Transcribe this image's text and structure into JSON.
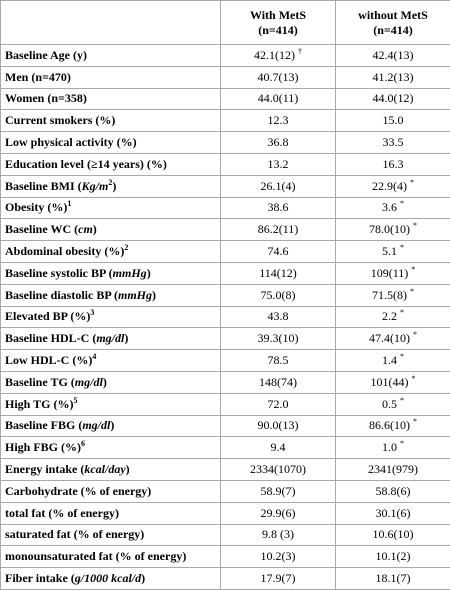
{
  "table": {
    "header": [
      {
        "lines": [
          "With MetS",
          "(n=414)"
        ]
      },
      {
        "lines": [
          "without MetS",
          "(n=414)"
        ]
      }
    ],
    "rows": [
      {
        "label": [
          {
            "t": "Baseline Age (y)"
          }
        ],
        "with": {
          "t": "42.1(12)",
          "sup": "†"
        },
        "without": {
          "t": "42.4(13)"
        }
      },
      {
        "label": [
          {
            "t": "Men (n=470)"
          }
        ],
        "with": {
          "t": "40.7(13)"
        },
        "without": {
          "t": "41.2(13)"
        }
      },
      {
        "label": [
          {
            "t": "Women (n=358)"
          }
        ],
        "with": {
          "t": "44.0(11)"
        },
        "without": {
          "t": "44.0(12)"
        }
      },
      {
        "label": [
          {
            "t": "Current smokers (%)"
          }
        ],
        "with": {
          "t": "12.3"
        },
        "without": {
          "t": "15.0"
        }
      },
      {
        "label": [
          {
            "t": "Low physical activity (%)"
          }
        ],
        "with": {
          "t": "36.8"
        },
        "without": {
          "t": "33.5"
        }
      },
      {
        "label": [
          {
            "t": "Education level (≥14 years) (%)"
          }
        ],
        "with": {
          "t": "13.2"
        },
        "without": {
          "t": "16.3"
        }
      },
      {
        "label": [
          {
            "t": "Baseline BMI ("
          },
          {
            "t": "Kg/m",
            "s": "i"
          },
          {
            "t": "2",
            "s": "sup"
          },
          {
            "t": ")"
          }
        ],
        "with": {
          "t": "26.1(4)"
        },
        "without": {
          "t": "22.9(4)",
          "sup": "*"
        }
      },
      {
        "label": [
          {
            "t": "Obesity (%)"
          },
          {
            "t": "1",
            "s": "sup"
          }
        ],
        "with": {
          "t": "38.6"
        },
        "without": {
          "t": "3.6",
          "sup": "*"
        }
      },
      {
        "label": [
          {
            "t": "Baseline WC ("
          },
          {
            "t": "cm",
            "s": "i"
          },
          {
            "t": ")"
          }
        ],
        "with": {
          "t": "86.2(11)"
        },
        "without": {
          "t": "78.0(10)",
          "sup": "*"
        }
      },
      {
        "label": [
          {
            "t": "Abdominal obesity (%)"
          },
          {
            "t": "2",
            "s": "sup"
          }
        ],
        "with": {
          "t": "74.6"
        },
        "without": {
          "t": "5.1",
          "sup": "*"
        }
      },
      {
        "label": [
          {
            "t": "Baseline systolic BP ("
          },
          {
            "t": "mmHg",
            "s": "i"
          },
          {
            "t": ")"
          }
        ],
        "with": {
          "t": "114(12)"
        },
        "without": {
          "t": "109(11)",
          "sup": "*"
        }
      },
      {
        "label": [
          {
            "t": "Baseline diastolic BP ("
          },
          {
            "t": "mmHg",
            "s": "i"
          },
          {
            "t": ")"
          }
        ],
        "with": {
          "t": "75.0(8)"
        },
        "without": {
          "t": "71.5(8)",
          "sup": "*"
        }
      },
      {
        "label": [
          {
            "t": "Elevated BP (%)"
          },
          {
            "t": "3",
            "s": "sup"
          }
        ],
        "with": {
          "t": "43.8"
        },
        "without": {
          "t": "2.2",
          "sup": "*"
        }
      },
      {
        "label": [
          {
            "t": "Baseline HDL-C ("
          },
          {
            "t": "mg/dl",
            "s": "i"
          },
          {
            "t": ")"
          }
        ],
        "with": {
          "t": "39.3(10)"
        },
        "without": {
          "t": "47.4(10)",
          "sup": "*"
        }
      },
      {
        "label": [
          {
            "t": "Low HDL-C (%)"
          },
          {
            "t": "4",
            "s": "sup"
          }
        ],
        "with": {
          "t": "78.5"
        },
        "without": {
          "t": "1.4",
          "sup": "*"
        }
      },
      {
        "label": [
          {
            "t": "Baseline TG ("
          },
          {
            "t": "mg/dl",
            "s": "i"
          },
          {
            "t": ")"
          }
        ],
        "with": {
          "t": "148(74)"
        },
        "without": {
          "t": "101(44)",
          "sup": "*"
        }
      },
      {
        "label": [
          {
            "t": "High TG (%)"
          },
          {
            "t": "5",
            "s": "sup"
          }
        ],
        "with": {
          "t": "72.0"
        },
        "without": {
          "t": "0.5",
          "sup": "*"
        }
      },
      {
        "label": [
          {
            "t": "Baseline FBG ("
          },
          {
            "t": "mg/dl",
            "s": "i"
          },
          {
            "t": ")"
          }
        ],
        "with": {
          "t": "90.0(13)"
        },
        "without": {
          "t": "86.6(10)",
          "sup": "*"
        }
      },
      {
        "label": [
          {
            "t": "High FBG (%)"
          },
          {
            "t": "6",
            "s": "sup"
          }
        ],
        "with": {
          "t": "9.4"
        },
        "without": {
          "t": "1.0",
          "sup": "*"
        }
      },
      {
        "label": [
          {
            "t": "Energy intake ("
          },
          {
            "t": "kcal/day",
            "s": "i"
          },
          {
            "t": ")"
          }
        ],
        "with": {
          "t": "2334(1070)"
        },
        "without": {
          "t": "2341(979)"
        }
      },
      {
        "label": [
          {
            "t": "Carbohydrate (% of energy)"
          }
        ],
        "with": {
          "t": "58.9(7)"
        },
        "without": {
          "t": "58.8(6)"
        }
      },
      {
        "label": [
          {
            "t": "total fat (% of energy)"
          }
        ],
        "with": {
          "t": "29.9(6)"
        },
        "without": {
          "t": "30.1(6)"
        }
      },
      {
        "label": [
          {
            "t": "saturated fat (% of energy)"
          }
        ],
        "with": {
          "t": "9.8 (3)"
        },
        "without": {
          "t": "10.6(10)"
        }
      },
      {
        "label": [
          {
            "t": "monounsaturated fat (% of energy)"
          }
        ],
        "with": {
          "t": "10.2(3)"
        },
        "without": {
          "t": "10.1(2)"
        }
      },
      {
        "label": [
          {
            "t": "Fiber intake ("
          },
          {
            "t": "g/1000 kcal/d",
            "s": "i"
          },
          {
            "t": ")"
          }
        ],
        "with": {
          "t": "17.9(7)"
        },
        "without": {
          "t": "18.1(7)"
        }
      }
    ]
  }
}
